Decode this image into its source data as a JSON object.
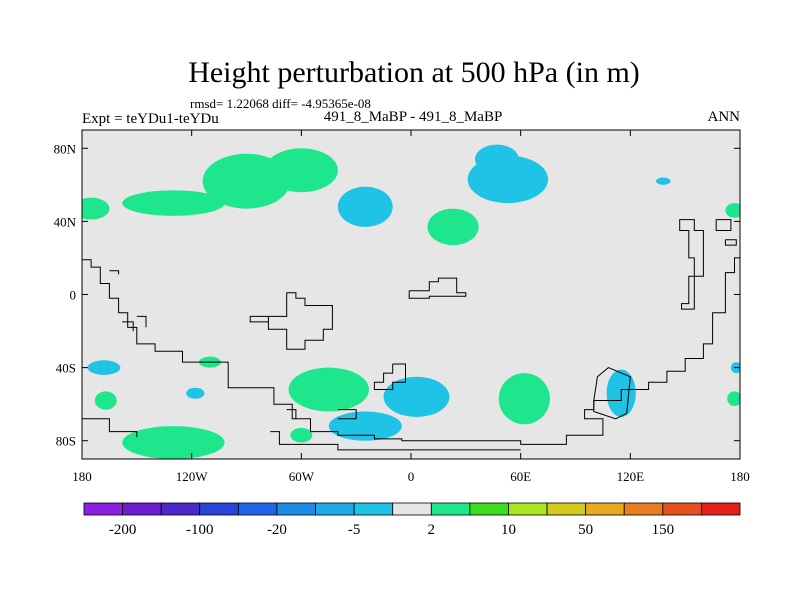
{
  "chart_data": {
    "type": "heatmap",
    "title": "Height perturbation at 500 hPa (in m)",
    "stats_line": "rmsd= 1.22068 diff= -4.95365e-08",
    "left_label": "Expt = teYDu1-teYDu",
    "center_label": "491_8_MaBP - 491_8_MaBP",
    "right_label": "ANN",
    "x_range": [
      -180,
      180
    ],
    "y_range": [
      -90,
      90
    ],
    "x_ticks": [
      {
        "value": -180,
        "label": "180"
      },
      {
        "value": -120,
        "label": "120W"
      },
      {
        "value": -60,
        "label": "60W"
      },
      {
        "value": 0,
        "label": "0"
      },
      {
        "value": 60,
        "label": "60E"
      },
      {
        "value": 120,
        "label": "120E"
      },
      {
        "value": 180,
        "label": "180"
      }
    ],
    "y_ticks": [
      {
        "value": 80,
        "label": "80N"
      },
      {
        "value": 40,
        "label": "40N"
      },
      {
        "value": 0,
        "label": "0"
      },
      {
        "value": -40,
        "label": "40S"
      },
      {
        "value": -80,
        "label": "80S"
      }
    ],
    "colorbar": {
      "colors": [
        "#8c1ee6",
        "#6e1ed2",
        "#4b28c8",
        "#2846dc",
        "#1e64e6",
        "#1e8ce6",
        "#1eaae6",
        "#1ec3e6",
        "#e6e6e6",
        "#1ee68c",
        "#3cdc1e",
        "#aae61e",
        "#d2c81e",
        "#e6aa1e",
        "#e67d1e",
        "#e6501e",
        "#e61e1e"
      ],
      "labels": [
        "-200",
        "-100",
        "-20",
        "-5",
        "2",
        "10",
        "50",
        "150"
      ]
    },
    "neutral_color": "#e6e6e6",
    "positive_color": "#1ee68c",
    "negative_color": "#1ec3e6",
    "anomalies": [
      {
        "sign": "positive",
        "lon": -90,
        "lat": 62,
        "dlon": 24,
        "dlat": 15
      },
      {
        "sign": "positive",
        "lon": -60,
        "lat": 68,
        "dlon": 20,
        "dlat": 12
      },
      {
        "sign": "positive",
        "lon": -130,
        "lat": 50,
        "dlon": 28,
        "dlat": 7
      },
      {
        "sign": "positive",
        "lon": -175,
        "lat": 47,
        "dlon": 10,
        "dlat": 6
      },
      {
        "sign": "positive",
        "lon": 23,
        "lat": 37,
        "dlon": 14,
        "dlat": 10
      },
      {
        "sign": "positive",
        "lon": -45,
        "lat": -52,
        "dlon": 22,
        "dlat": 12
      },
      {
        "sign": "positive",
        "lon": 62,
        "lat": -57,
        "dlon": 14,
        "dlat": 14
      },
      {
        "sign": "positive",
        "lon": -130,
        "lat": -81,
        "dlon": 28,
        "dlat": 9
      },
      {
        "sign": "positive",
        "lon": -60,
        "lat": -77,
        "dlon": 6,
        "dlat": 4
      },
      {
        "sign": "positive",
        "lon": -167,
        "lat": -58,
        "dlon": 6,
        "dlat": 5
      },
      {
        "sign": "positive",
        "lon": 177,
        "lat": 46,
        "dlon": 5,
        "dlat": 4
      },
      {
        "sign": "positive",
        "lon": 177,
        "lat": -57,
        "dlon": 4,
        "dlat": 4
      },
      {
        "sign": "positive",
        "lon": -110,
        "lat": -37,
        "dlon": 6,
        "dlat": 3
      },
      {
        "sign": "negative",
        "lon": -25,
        "lat": 48,
        "dlon": 15,
        "dlat": 11
      },
      {
        "sign": "negative",
        "lon": 53,
        "lat": 63,
        "dlon": 22,
        "dlat": 13
      },
      {
        "sign": "negative",
        "lon": 47,
        "lat": 74,
        "dlon": 12,
        "dlat": 8
      },
      {
        "sign": "negative",
        "lon": 3,
        "lat": -56,
        "dlon": 18,
        "dlat": 11
      },
      {
        "sign": "negative",
        "lon": -25,
        "lat": -72,
        "dlon": 20,
        "dlat": 8
      },
      {
        "sign": "negative",
        "lon": 115,
        "lat": -54,
        "dlon": 8,
        "dlat": 13
      },
      {
        "sign": "negative",
        "lon": -168,
        "lat": -40,
        "dlon": 9,
        "dlat": 4
      },
      {
        "sign": "negative",
        "lon": -118,
        "lat": -54,
        "dlon": 5,
        "dlat": 3
      },
      {
        "sign": "negative",
        "lon": 138,
        "lat": 62,
        "dlon": 4,
        "dlat": 2
      },
      {
        "sign": "negative",
        "lon": 178,
        "lat": -40,
        "dlon": 3,
        "dlat": 3
      }
    ],
    "coastlines": [
      [
        [
          -180,
          19
        ],
        [
          -175,
          19
        ],
        [
          -175,
          15
        ],
        [
          -170,
          15
        ],
        [
          -170,
          6
        ],
        [
          -165,
          6
        ],
        [
          -165,
          -2
        ],
        [
          -160,
          -2
        ],
        [
          -160,
          -10
        ],
        [
          -155,
          -10
        ],
        [
          -155,
          -18
        ],
        [
          -150,
          -18
        ],
        [
          -150,
          -27
        ],
        [
          -140,
          -27
        ],
        [
          -140,
          -31
        ],
        [
          -125,
          -31
        ],
        [
          -125,
          -37
        ],
        [
          -100,
          -37
        ],
        [
          -100,
          -51
        ],
        [
          -75,
          -51
        ],
        [
          -75,
          -60
        ],
        [
          -65,
          -60
        ],
        [
          -65,
          -68
        ],
        [
          -55,
          -68
        ],
        [
          -55,
          -75
        ],
        [
          -40,
          -75
        ],
        [
          -40,
          -77
        ],
        [
          -20,
          -77
        ],
        [
          -20,
          -79
        ],
        [
          -5,
          -79
        ],
        [
          -5,
          -80
        ],
        [
          60,
          -80
        ],
        [
          60,
          -82
        ],
        [
          85,
          -82
        ],
        [
          85,
          -77
        ],
        [
          105,
          -77
        ],
        [
          105,
          -68
        ],
        [
          95,
          -68
        ],
        [
          95,
          -63
        ],
        [
          100,
          -63
        ],
        [
          100,
          -58
        ],
        [
          115,
          -58
        ],
        [
          115,
          -52
        ],
        [
          130,
          -52
        ],
        [
          130,
          -48
        ],
        [
          140,
          -48
        ],
        [
          140,
          -42
        ],
        [
          150,
          -42
        ],
        [
          150,
          -35
        ],
        [
          160,
          -35
        ],
        [
          160,
          -27
        ],
        [
          165,
          -27
        ],
        [
          165,
          -10
        ],
        [
          172,
          -10
        ],
        [
          172,
          12
        ],
        [
          177,
          12
        ],
        [
          177,
          20
        ],
        [
          180,
          20
        ]
      ],
      [
        [
          -165,
          13
        ],
        [
          -160,
          13
        ],
        [
          -160,
          11
        ]
      ],
      [
        [
          -150,
          -12
        ],
        [
          -145,
          -12
        ],
        [
          -145,
          -18
        ]
      ],
      [
        [
          -88,
          -12
        ],
        [
          -78,
          -12
        ],
        [
          -78,
          -19
        ],
        [
          -68,
          -19
        ],
        [
          -68,
          -30
        ],
        [
          -58,
          -30
        ],
        [
          -58,
          -25
        ],
        [
          -48,
          -25
        ],
        [
          -48,
          -19
        ],
        [
          -43,
          -19
        ],
        [
          -43,
          -6
        ],
        [
          -58,
          -6
        ],
        [
          -58,
          -2
        ],
        [
          -63,
          -2
        ],
        [
          -63,
          1
        ],
        [
          -68,
          1
        ],
        [
          -68,
          -12
        ],
        [
          -88,
          -12
        ],
        [
          -88,
          -15
        ],
        [
          -78,
          -15
        ]
      ],
      [
        [
          -1,
          2
        ],
        [
          10,
          2
        ],
        [
          10,
          7
        ],
        [
          15,
          7
        ],
        [
          15,
          9
        ],
        [
          25,
          9
        ],
        [
          25,
          1
        ],
        [
          30,
          1
        ],
        [
          30,
          -1
        ],
        [
          10,
          -1
        ],
        [
          10,
          -2
        ],
        [
          -1,
          -2
        ],
        [
          -1,
          2
        ]
      ],
      [
        [
          -10,
          -38
        ],
        [
          -3,
          -38
        ],
        [
          -3,
          -48
        ],
        [
          -10,
          -48
        ],
        [
          -10,
          -52
        ],
        [
          -20,
          -52
        ],
        [
          -20,
          -48
        ],
        [
          -15,
          -48
        ],
        [
          -15,
          -43
        ],
        [
          -10,
          -43
        ],
        [
          -10,
          -38
        ]
      ],
      [
        [
          150,
          41
        ],
        [
          155,
          41
        ],
        [
          155,
          35
        ],
        [
          160,
          35
        ],
        [
          160,
          10
        ],
        [
          152,
          10
        ],
        [
          152,
          -5
        ],
        [
          148,
          -5
        ],
        [
          148,
          -8
        ],
        [
          155,
          -8
        ],
        [
          155,
          20
        ],
        [
          152,
          20
        ],
        [
          152,
          35
        ],
        [
          147,
          35
        ],
        [
          147,
          41
        ],
        [
          150,
          41
        ]
      ],
      [
        [
          -180,
          -68
        ],
        [
          -165,
          -68
        ],
        [
          -165,
          -75
        ],
        [
          -150,
          -75
        ],
        [
          -150,
          -78
        ]
      ],
      [
        [
          -40,
          -63
        ],
        [
          -30,
          -63
        ],
        [
          -30,
          -68
        ],
        [
          -40,
          -68
        ]
      ],
      [
        [
          -68,
          -63
        ],
        [
          -63,
          -63
        ],
        [
          -63,
          -68
        ]
      ],
      [
        [
          -77,
          -75
        ],
        [
          -72,
          -75
        ],
        [
          -72,
          -82
        ],
        [
          -40,
          -82
        ],
        [
          -40,
          -85
        ],
        [
          60,
          -85
        ]
      ],
      [
        [
          100,
          -58
        ],
        [
          102,
          -45
        ],
        [
          108,
          -40
        ],
        [
          120,
          -45
        ],
        [
          118,
          -65
        ],
        [
          112,
          -68
        ],
        [
          100,
          -64
        ],
        [
          100,
          -58
        ]
      ],
      [
        [
          170,
          41
        ],
        [
          175,
          41
        ],
        [
          175,
          35
        ],
        [
          167,
          35
        ],
        [
          167,
          41
        ],
        [
          170,
          41
        ]
      ],
      [
        [
          172,
          30
        ],
        [
          178,
          30
        ],
        [
          178,
          27
        ],
        [
          172,
          27
        ],
        [
          172,
          30
        ]
      ],
      [
        [
          -158,
          -15
        ],
        [
          -152,
          -15
        ],
        [
          -152,
          -20
        ]
      ]
    ]
  }
}
